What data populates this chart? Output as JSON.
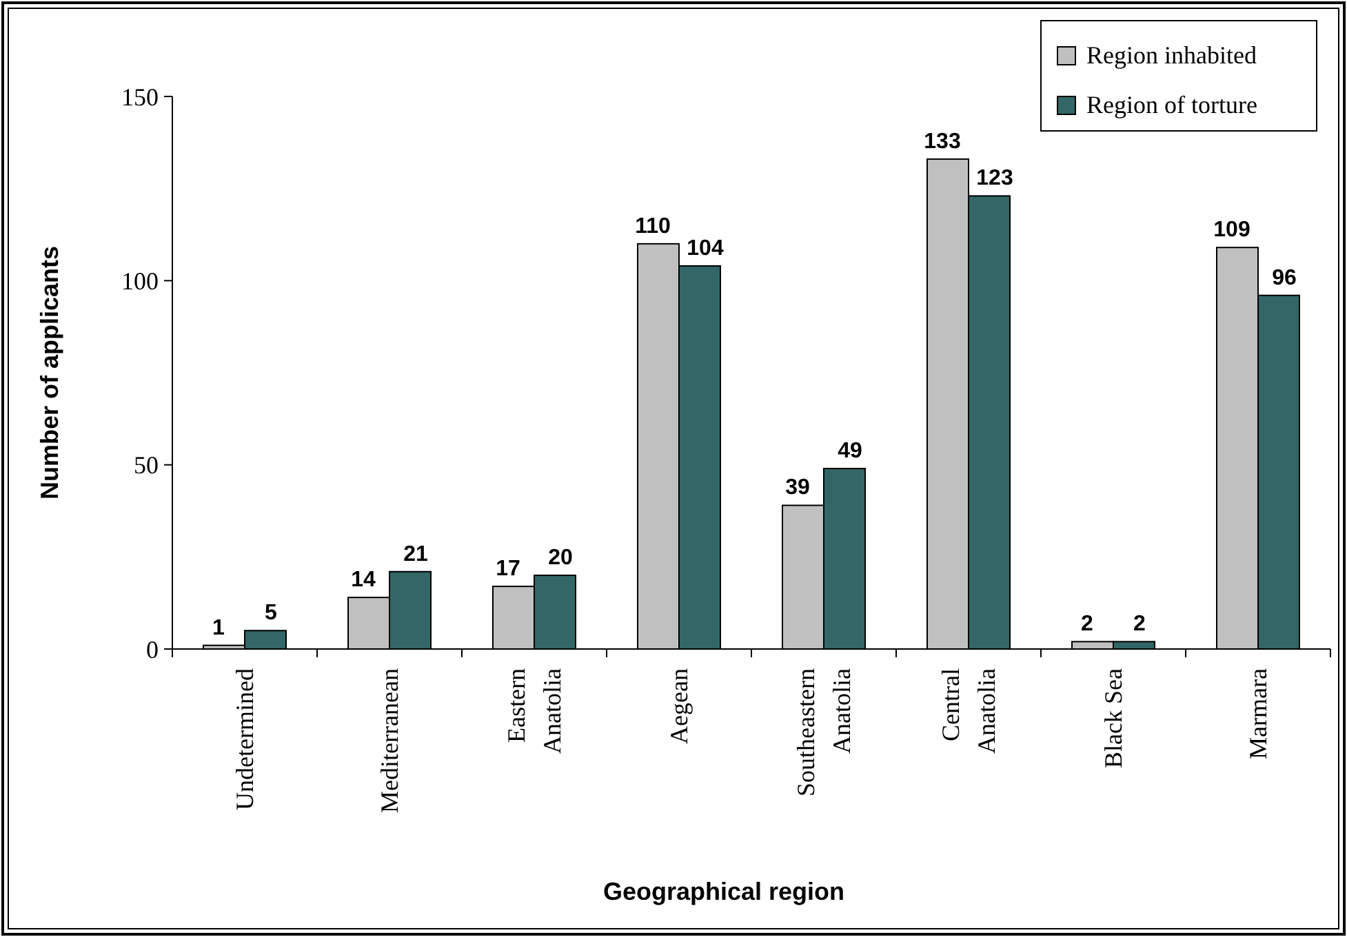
{
  "chart_data": {
    "type": "bar",
    "xlabel": "Geographical region",
    "ylabel": "Number of applicants",
    "categories": [
      "Undetermined",
      "Mediterranean",
      "Eastern\nAnatolia",
      "Aegean",
      "Southeastern\nAnatolia",
      "Central\nAnatolia",
      "Black Sea",
      "Marmara"
    ],
    "series": [
      {
        "name": "Region inhabited",
        "color": "#c0c0c0",
        "values": [
          1,
          14,
          17,
          110,
          39,
          133,
          2,
          109
        ]
      },
      {
        "name": "Region of torture",
        "color": "#336666",
        "values": [
          5,
          21,
          20,
          104,
          49,
          123,
          2,
          96
        ]
      }
    ],
    "ylim": [
      0,
      150
    ],
    "yticks": [
      0,
      50,
      100,
      150
    ],
    "data_labels": true,
    "legend": "top right",
    "grid": false
  }
}
